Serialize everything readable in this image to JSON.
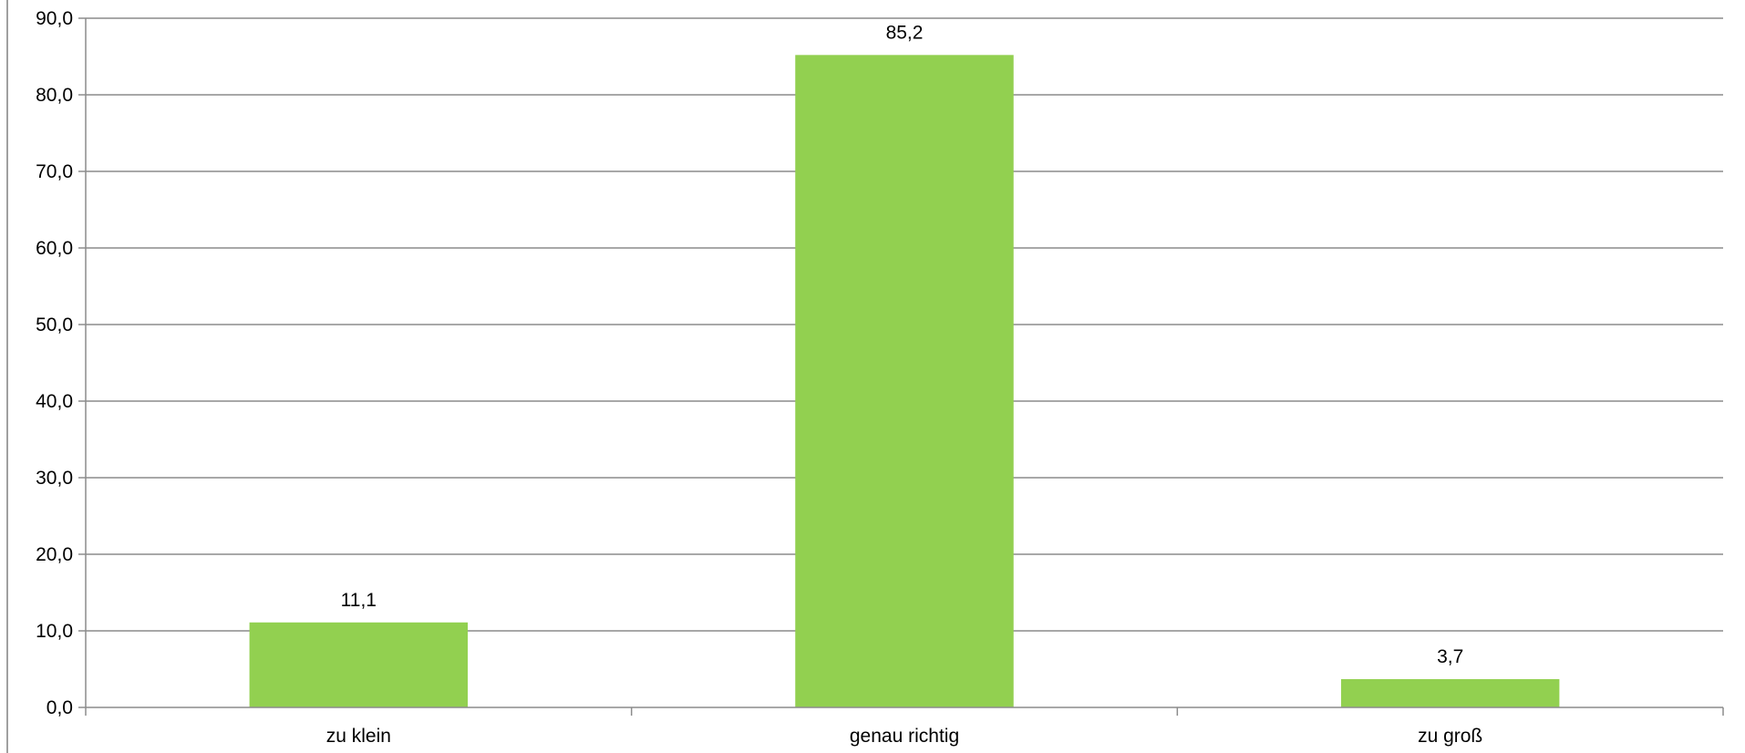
{
  "chart_data": {
    "type": "bar",
    "title": "",
    "xlabel": "",
    "ylabel": "",
    "categories": [
      "zu klein",
      "genau richtig",
      "zu groß"
    ],
    "series": [
      {
        "values": [
          11.1,
          85.2,
          3.7
        ],
        "value_labels": [
          "11,1",
          "85,2",
          "3,7"
        ],
        "color": "#92d050"
      }
    ],
    "ylim": [
      0,
      90
    ],
    "yticks": [
      0,
      10,
      20,
      30,
      40,
      50,
      60,
      70,
      80,
      90
    ],
    "ytick_labels": [
      "0,0",
      "10,0",
      "20,0",
      "30,0",
      "40,0",
      "50,0",
      "60,0",
      "70,0",
      "80,0",
      "90,0"
    ],
    "grid": true,
    "legend": "none",
    "colors": {
      "bar": "#92d050",
      "gridline": "#8c8c8c",
      "axis": "#8c8c8c",
      "frame": "#a0a0a0"
    }
  }
}
